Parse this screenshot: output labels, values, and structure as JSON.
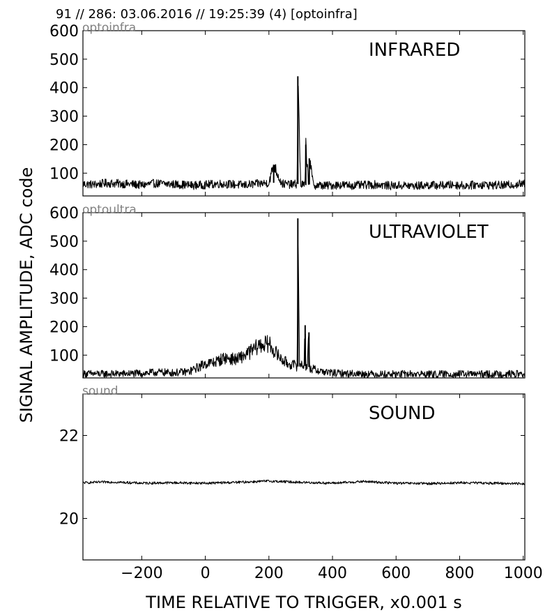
{
  "header": "91 // 286:   03.06.2016 // 19:25:39 (4)  [optoinfra]",
  "colors": {
    "line": "#000000",
    "frame": "#000000",
    "tag": "#808080",
    "background": "#ffffff"
  },
  "chart_data": [
    {
      "type": "line",
      "tag": "optoinfra",
      "title": "INFRARED",
      "xlim": [
        -385,
        1005
      ],
      "ylim": [
        20,
        600
      ],
      "yticks": [
        100,
        200,
        300,
        400,
        500,
        600
      ],
      "series": [
        {
          "x": [
            -385,
            -350,
            -310,
            -270,
            -230,
            -200,
            -160,
            -120,
            -80,
            -40,
            0,
            40,
            80,
            120,
            160,
            200,
            215,
            240,
            270,
            289,
            291,
            300,
            314,
            316,
            325,
            327,
            340,
            380,
            420,
            460,
            500,
            540,
            580,
            620,
            660,
            700,
            740,
            780,
            820,
            860,
            900,
            940,
            990
          ],
          "values": [
            62,
            60,
            65,
            63,
            61,
            58,
            64,
            62,
            60,
            57,
            59,
            63,
            61,
            58,
            62,
            66,
            130,
            63,
            60,
            62,
            440,
            60,
            58,
            200,
            60,
            152,
            58,
            56,
            59,
            57,
            58,
            60,
            56,
            57,
            55,
            58,
            57,
            59,
            56,
            60,
            58,
            57,
            62
          ],
          "noise": 30
        }
      ]
    },
    {
      "type": "line",
      "tag": "optoultra",
      "title": "ULTRAVIOLET",
      "xlim": [
        -385,
        1005
      ],
      "ylim": [
        20,
        600
      ],
      "yticks": [
        100,
        200,
        300,
        400,
        500,
        600
      ],
      "series": [
        {
          "x": [
            -385,
            -300,
            -200,
            -150,
            -100,
            -50,
            0,
            30,
            60,
            100,
            140,
            170,
            200,
            220,
            240,
            260,
            280,
            289,
            291,
            296,
            310,
            314,
            316,
            320,
            326,
            328,
            340,
            380,
            420,
            480,
            560,
            640,
            720,
            800,
            880,
            990
          ],
          "values": [
            35,
            34,
            36,
            40,
            38,
            42,
            70,
            75,
            90,
            85,
            110,
            135,
            140,
            110,
            85,
            70,
            65,
            60,
            580,
            70,
            62,
            205,
            60,
            58,
            180,
            55,
            50,
            40,
            36,
            35,
            33,
            34,
            33,
            34,
            33,
            34
          ],
          "noise": 26
        }
      ]
    },
    {
      "type": "line",
      "tag": "sound",
      "title": "SOUND",
      "xlim": [
        -385,
        1005
      ],
      "ylim": [
        19.0,
        23.0
      ],
      "yticks": [
        20,
        22
      ],
      "series": [
        {
          "x": [
            -385,
            -300,
            -200,
            -100,
            0,
            100,
            200,
            300,
            400,
            500,
            600,
            700,
            800,
            900,
            990
          ],
          "values": [
            20.86,
            20.88,
            20.85,
            20.86,
            20.85,
            20.87,
            20.9,
            20.87,
            20.85,
            20.89,
            20.85,
            20.84,
            20.86,
            20.85,
            20.84
          ],
          "noise": 0.06
        }
      ]
    }
  ],
  "x_ticks": [
    -200,
    0,
    200,
    400,
    600,
    800,
    1000
  ],
  "x_tick_labels": [
    "−200",
    "0",
    "200",
    "400",
    "600",
    "800",
    "1000"
  ],
  "xlabel": "TIME RELATIVE TO TRIGGER,   x0.001 s",
  "ylabel": "SIGNAL AMPLITUDE,  ADC code"
}
